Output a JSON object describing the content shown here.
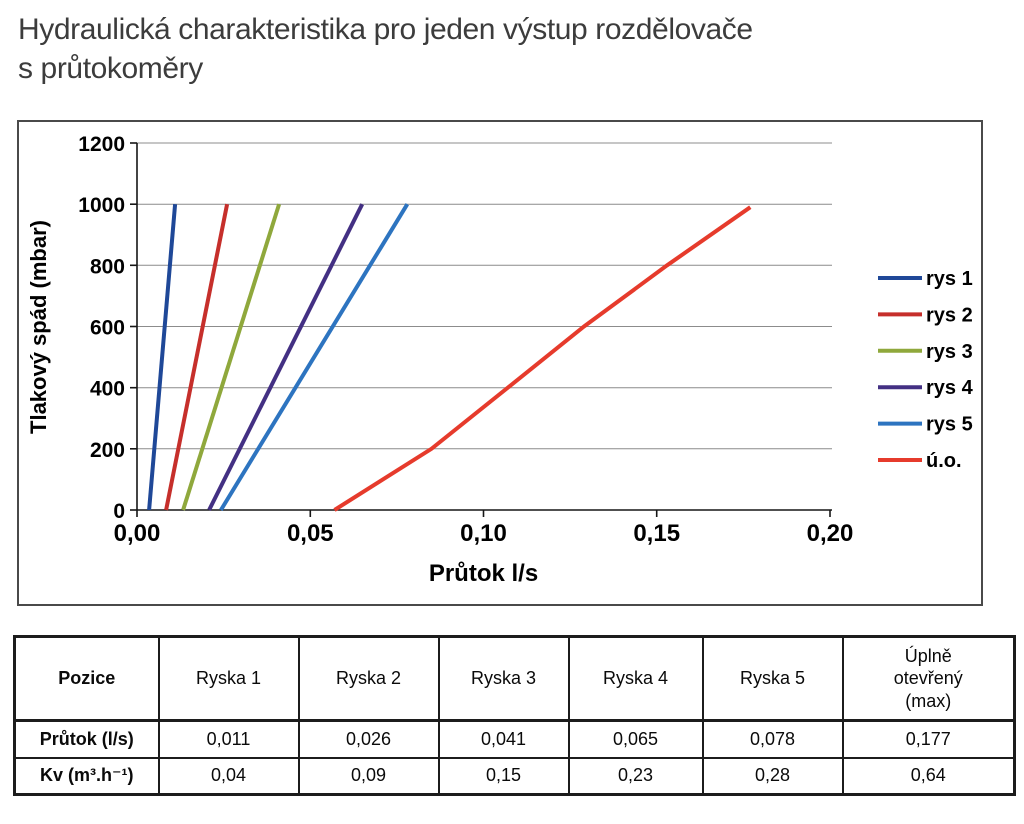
{
  "page": {
    "title": "Hydraulická charakteristika pro jeden výstup rozdělovače\ns průtokoměry"
  },
  "chart_data": {
    "type": "line",
    "title": "",
    "xlabel": "Průtok l/s",
    "ylabel": "Tlakový spád (mbar)",
    "xlim": [
      0,
      0.2
    ],
    "ylim": [
      0,
      1200
    ],
    "x_ticks": [
      0,
      0.05,
      0.1,
      0.15,
      0.2
    ],
    "x_tick_labels": [
      "0,00",
      "0,05",
      "0,10",
      "0,15",
      "0,20"
    ],
    "y_ticks": [
      0,
      200,
      400,
      600,
      800,
      1000,
      1200
    ],
    "y_tick_labels": [
      "0",
      "200",
      "400",
      "600",
      "800",
      "1000",
      "1200"
    ],
    "grid": "horizontal",
    "legend_position": "right",
    "series": [
      {
        "name": "rys 1",
        "color": "#1f4898",
        "points": [
          [
            0.0035,
            0
          ],
          [
            0.011,
            1000
          ]
        ]
      },
      {
        "name": "rys 2",
        "color": "#c62f2b",
        "points": [
          [
            0.0084,
            0
          ],
          [
            0.026,
            1000
          ]
        ]
      },
      {
        "name": "rys 3",
        "color": "#8fa83c",
        "points": [
          [
            0.0133,
            0
          ],
          [
            0.041,
            1000
          ]
        ]
      },
      {
        "name": "rys 4",
        "color": "#433083",
        "points": [
          [
            0.0208,
            0
          ],
          [
            0.065,
            1000
          ]
        ]
      },
      {
        "name": "rys 5",
        "color": "#2d74c0",
        "points": [
          [
            0.0242,
            0
          ],
          [
            0.078,
            1000
          ]
        ]
      },
      {
        "name": "ú.o.",
        "color": "#e63b2c",
        "points": [
          [
            0.057,
            0
          ],
          [
            0.085,
            200
          ],
          [
            0.107,
            400
          ],
          [
            0.129,
            600
          ],
          [
            0.153,
            800
          ],
          [
            0.177,
            990
          ]
        ]
      }
    ]
  },
  "table": {
    "header": [
      "Pozice",
      "Ryska 1",
      "Ryska 2",
      "Ryska 3",
      "Ryska 4",
      "Ryska 5",
      "Úplně otevřený (max)"
    ],
    "rows": [
      {
        "label": "Průtok (l/s)",
        "values": [
          "0,011",
          "0,026",
          "0,041",
          "0,065",
          "0,078",
          "0,177"
        ]
      },
      {
        "label": "Kv (m³.h⁻¹)",
        "values": [
          "0,04",
          "0,09",
          "0,15",
          "0,23",
          "0,28",
          "0,64"
        ]
      }
    ]
  }
}
